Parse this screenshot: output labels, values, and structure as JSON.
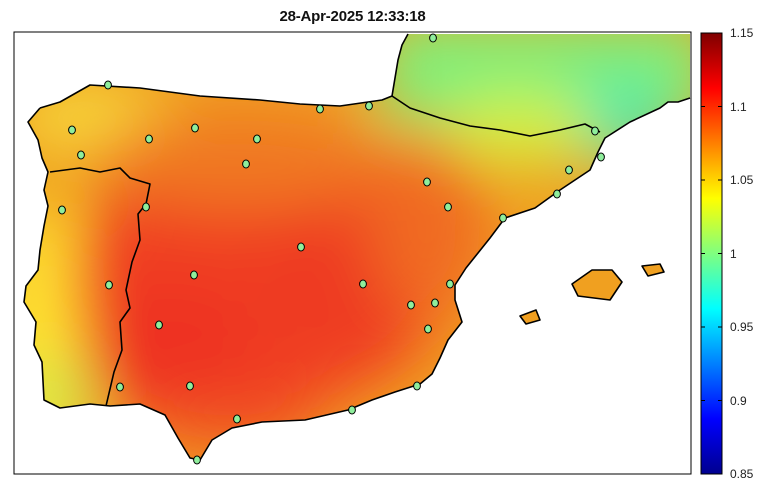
{
  "map": {
    "title": "28-Apr-2025 12:33:18"
  },
  "colorbar": {
    "min": 0.85,
    "max": 1.15,
    "colormap": "jet",
    "ticks": [
      {
        "value": 1.15,
        "label": "1.15"
      },
      {
        "value": 1.1,
        "label": "1.1"
      },
      {
        "value": 1.05,
        "label": "1.05"
      },
      {
        "value": 1,
        "label": "1"
      },
      {
        "value": 0.95,
        "label": "0.95"
      },
      {
        "value": 0.9,
        "label": "0.9"
      },
      {
        "value": 0.85,
        "label": "0.85"
      }
    ]
  },
  "stations": {
    "marker_color": "#8fee9c",
    "count": 33
  }
}
